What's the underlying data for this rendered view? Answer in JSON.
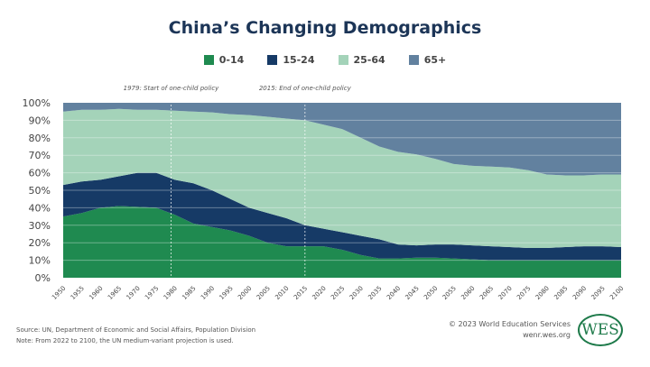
{
  "chart_data": {
    "type": "area",
    "stacked": true,
    "title": "China’s Changing Demographics",
    "xlabel": "",
    "ylabel": "",
    "ylim": [
      0,
      100
    ],
    "y_ticks": [
      "0%",
      "10%",
      "20%",
      "30%",
      "40%",
      "50%",
      "60%",
      "70%",
      "80%",
      "90%",
      "100%"
    ],
    "grid": true,
    "legend_placement": "top",
    "x": [
      1950,
      1955,
      1960,
      1965,
      1970,
      1975,
      1980,
      1985,
      1990,
      1995,
      2000,
      2005,
      2010,
      2015,
      2020,
      2025,
      2030,
      2035,
      2040,
      2045,
      2050,
      2055,
      2060,
      2065,
      2070,
      2075,
      2080,
      2085,
      2090,
      2095,
      2100
    ],
    "series": [
      {
        "name": "0-14",
        "color": "#1f8a50",
        "values": [
          35,
          37,
          40,
          41,
          40.5,
          40,
          36,
          31,
          29,
          27,
          24,
          20,
          18,
          18,
          18,
          16,
          13,
          11,
          11,
          11.5,
          11.5,
          11,
          10.5,
          10,
          10,
          10,
          10,
          10,
          10,
          10,
          10
        ]
      },
      {
        "name": "15-24",
        "color": "#163a66",
        "values": [
          18,
          18,
          16,
          17,
          19.5,
          20,
          20,
          23,
          21,
          18,
          16,
          17,
          16,
          12,
          10,
          10,
          11,
          11,
          8,
          7,
          7.5,
          8,
          8,
          8,
          7.5,
          7,
          7,
          7.5,
          8,
          8,
          7.5
        ]
      },
      {
        "name": "25-64",
        "color": "#a4d3b9",
        "values": [
          42,
          41,
          40,
          38.5,
          36,
          36,
          39.5,
          41,
          44.5,
          48.5,
          53,
          55,
          57,
          60,
          59.5,
          59,
          56,
          53,
          53,
          52,
          49,
          46,
          45.5,
          45.5,
          45.5,
          44.5,
          42,
          41,
          40.5,
          41,
          41.5
        ]
      },
      {
        "name": "65+",
        "color": "#62819f",
        "values": [
          5,
          4,
          4,
          3.5,
          4,
          4,
          4.5,
          5,
          5.5,
          6.5,
          7,
          8,
          9,
          10,
          12.5,
          15,
          20,
          25,
          28,
          29.5,
          32,
          35,
          36,
          36.5,
          37,
          38.5,
          41,
          41.5,
          41.5,
          41,
          41
        ]
      }
    ],
    "annotations": [
      {
        "x": 1979,
        "text": "1979: Start of one-child policy"
      },
      {
        "x": 2015,
        "text": "2015: End of one-child policy"
      }
    ]
  },
  "footer": {
    "source": "Source: UN, Department of Economic and Social Affairs, Population Division",
    "note": "Note: From 2022 to 2100, the UN medium-variant projection is used.",
    "copyright": "© 2023 World Education Services",
    "site": "wenr.wes.org",
    "logo_text": "WES"
  }
}
